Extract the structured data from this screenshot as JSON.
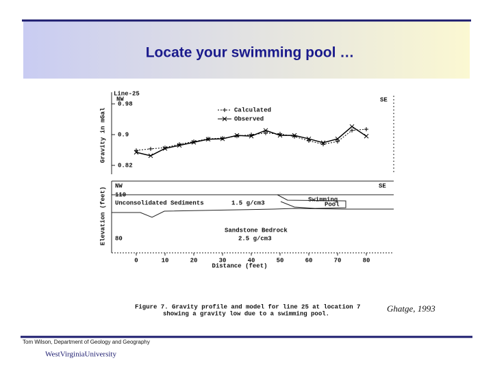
{
  "slide": {
    "title": "Locate your swimming pool …",
    "citation": "Ghatge, 1993",
    "footer": "Tom Wilson, Department of Geology and Geography",
    "logo": "WestVirginiaUniversity"
  },
  "figure": {
    "caption": [
      "Figure 7. Gravity profile and model for line 25 at location 7",
      "showing a gravity low due to a swimming pool."
    ]
  },
  "chart_data": {
    "type": "line",
    "line_label": "Line-25",
    "left_label": "NW",
    "right_label": "SE",
    "y_label": "Gravity in mGal",
    "x_label": "Distance (feet)",
    "x": [
      0,
      5,
      10,
      15,
      20,
      25,
      30,
      35,
      40,
      45,
      50,
      55,
      60,
      65,
      70,
      75,
      80
    ],
    "xlim": [
      0,
      80
    ],
    "xticks": [
      0,
      10,
      20,
      30,
      40,
      50,
      60,
      70,
      80
    ],
    "ylim": [
      0.82,
      0.98
    ],
    "yticks": [
      0.82,
      0.9,
      0.98
    ],
    "series": [
      {
        "name": "Calculated",
        "color": "#000000",
        "values": [
          0.859,
          0.863,
          0.866,
          0.875,
          0.882,
          0.889,
          0.891,
          0.896,
          0.9,
          0.904,
          0.902,
          0.895,
          0.884,
          0.875,
          0.882,
          0.911,
          0.914
        ]
      },
      {
        "name": "Observed",
        "color": "#000000",
        "values": [
          0.854,
          0.845,
          0.864,
          0.872,
          0.88,
          0.888,
          0.889,
          0.898,
          0.896,
          0.911,
          0.898,
          0.898,
          0.889,
          0.879,
          0.889,
          0.921,
          0.896
        ]
      }
    ]
  },
  "model": {
    "left_label": "NW",
    "right_label": "SE",
    "y_label": "Elevation (feet)",
    "top_elevation": 110,
    "bottom_elevation": 80,
    "sediments": "Unconsolidated Sediments",
    "sediments_density": "1.5 g/cm3",
    "pool": [
      "Swimming",
      "Pool"
    ],
    "bedrock": "Sandstone Bedrock",
    "bedrock_density": "2.5 g/cm3"
  }
}
